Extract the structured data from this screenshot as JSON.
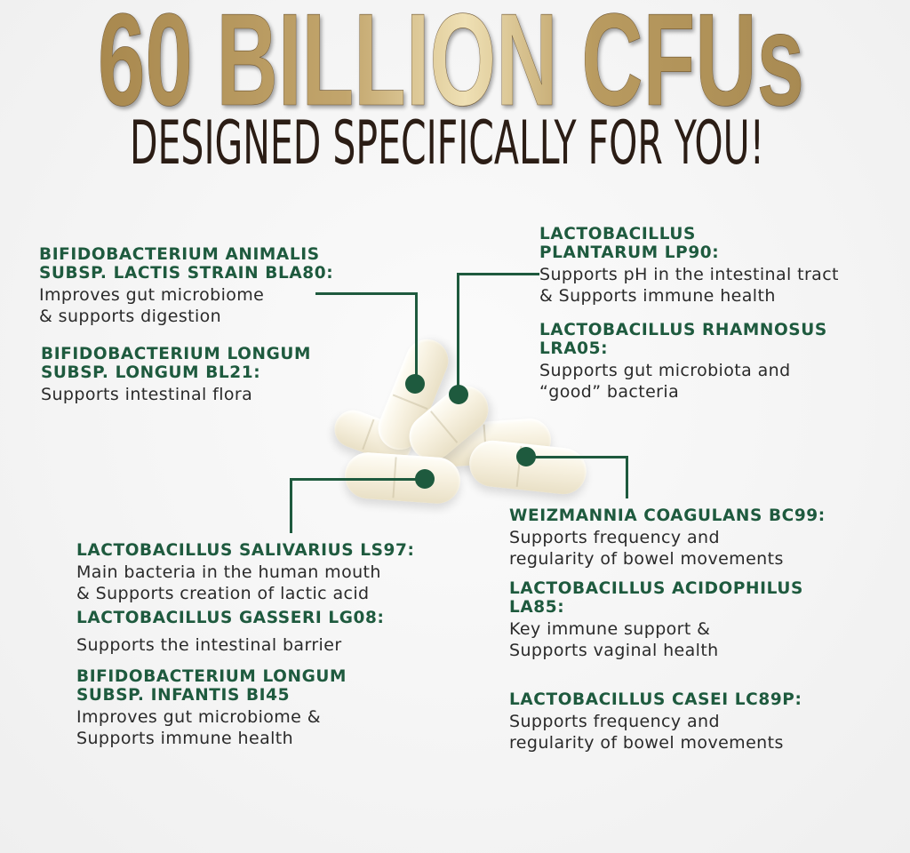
{
  "header": {
    "title": "60 BILLION CFUs",
    "subtitle": "DESIGNED SPECIFICALLY FOR YOU!"
  },
  "colors": {
    "gold": "#b89a5e",
    "green": "#1e5a3e",
    "brown": "#2b1d15"
  },
  "strains": [
    {
      "name": "BIFIDOBACTERIUM ANIMALIS\nSUBSP. LACTIS STRAIN BLA80:",
      "benefit": "Improves gut microbiome\n& supports digestion"
    },
    {
      "name": "BIFIDOBACTERIUM LONGUM\nSUBSP. LONGUM BL21:",
      "benefit": "Supports intestinal flora"
    },
    {
      "name": "LACTOBACILLUS\nPLANTARUM LP90:",
      "benefit": "Supports pH in the intestinal tract\n& Supports immune health"
    },
    {
      "name": "LACTOBACILLUS RHAMNOSUS\nLRA05:",
      "benefit": "Supports gut microbiota and\n“good” bacteria"
    },
    {
      "name": "WEIZMANNIA COAGULANS BC99:",
      "benefit": "Supports frequency and\nregularity of bowel movements"
    },
    {
      "name": "LACTOBACILLUS ACIDOPHILUS\nLA85:",
      "benefit": "Key immune support &\nSupports vaginal health"
    },
    {
      "name": "LACTOBACILLUS CASEI LC89P:",
      "benefit": "Supports frequency and\nregularity of bowel movements"
    },
    {
      "name": "LACTOBACILLUS SALIVARIUS LS97:",
      "benefit": "Main bacteria in the human mouth\n& Supports creation of lactic acid"
    },
    {
      "name": "LACTOBACILLUS GASSERI LG08:",
      "benefit": "Supports the intestinal barrier"
    },
    {
      "name": "BIFIDOBACTERIUM LONGUM\nSUBSP. INFANTIS BI45",
      "benefit": "Improves gut microbiome &\nSupports immune health"
    }
  ]
}
